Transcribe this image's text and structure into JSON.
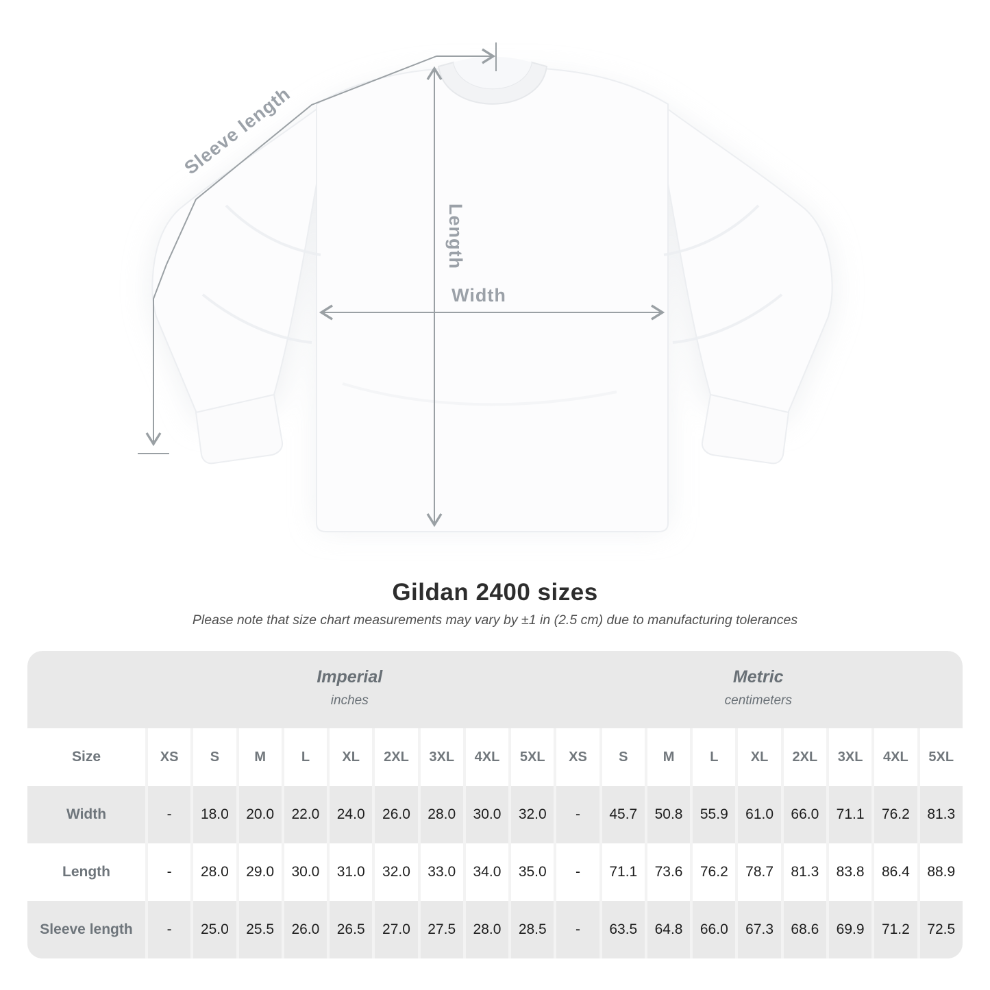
{
  "title": "Gildan 2400 sizes",
  "subtitle": "Please note that size chart measurements may vary by ±1 in (2.5 cm) due to manufacturing tolerances",
  "diagram": {
    "labels": {
      "sleeve_length": "Sleeve length",
      "length": "Length",
      "width": "Width"
    },
    "line_color": "#9aa0a4",
    "label_color": "#9ba1a8"
  },
  "table": {
    "size_label": "Size",
    "unit_groups": [
      {
        "name": "Imperial",
        "unit": "inches"
      },
      {
        "name": "Metric",
        "unit": "centimeters"
      }
    ],
    "sizes": [
      "XS",
      "S",
      "M",
      "L",
      "XL",
      "2XL",
      "3XL",
      "4XL",
      "5XL"
    ],
    "rows": [
      {
        "label": "Width",
        "imperial": [
          "-",
          "18.0",
          "20.0",
          "22.0",
          "24.0",
          "26.0",
          "28.0",
          "30.0",
          "32.0"
        ],
        "metric": [
          "-",
          "45.7",
          "50.8",
          "55.9",
          "61.0",
          "66.0",
          "71.1",
          "76.2",
          "81.3"
        ]
      },
      {
        "label": "Length",
        "imperial": [
          "-",
          "28.0",
          "29.0",
          "30.0",
          "31.0",
          "32.0",
          "33.0",
          "34.0",
          "35.0"
        ],
        "metric": [
          "-",
          "71.1",
          "73.6",
          "76.2",
          "78.7",
          "81.3",
          "83.8",
          "86.4",
          "88.9"
        ]
      },
      {
        "label": "Sleeve length",
        "imperial": [
          "-",
          "25.0",
          "25.5",
          "26.0",
          "26.5",
          "27.0",
          "27.5",
          "28.0",
          "28.5"
        ],
        "metric": [
          "-",
          "63.5",
          "64.8",
          "66.0",
          "67.3",
          "68.6",
          "69.9",
          "71.2",
          "72.5"
        ]
      }
    ],
    "colors": {
      "stripe": "#e9e9e9",
      "row_base": "#ffffff",
      "separator": "#f3f3f3",
      "label_text": "#6e757b",
      "value_text": "#1d1d1d"
    }
  }
}
